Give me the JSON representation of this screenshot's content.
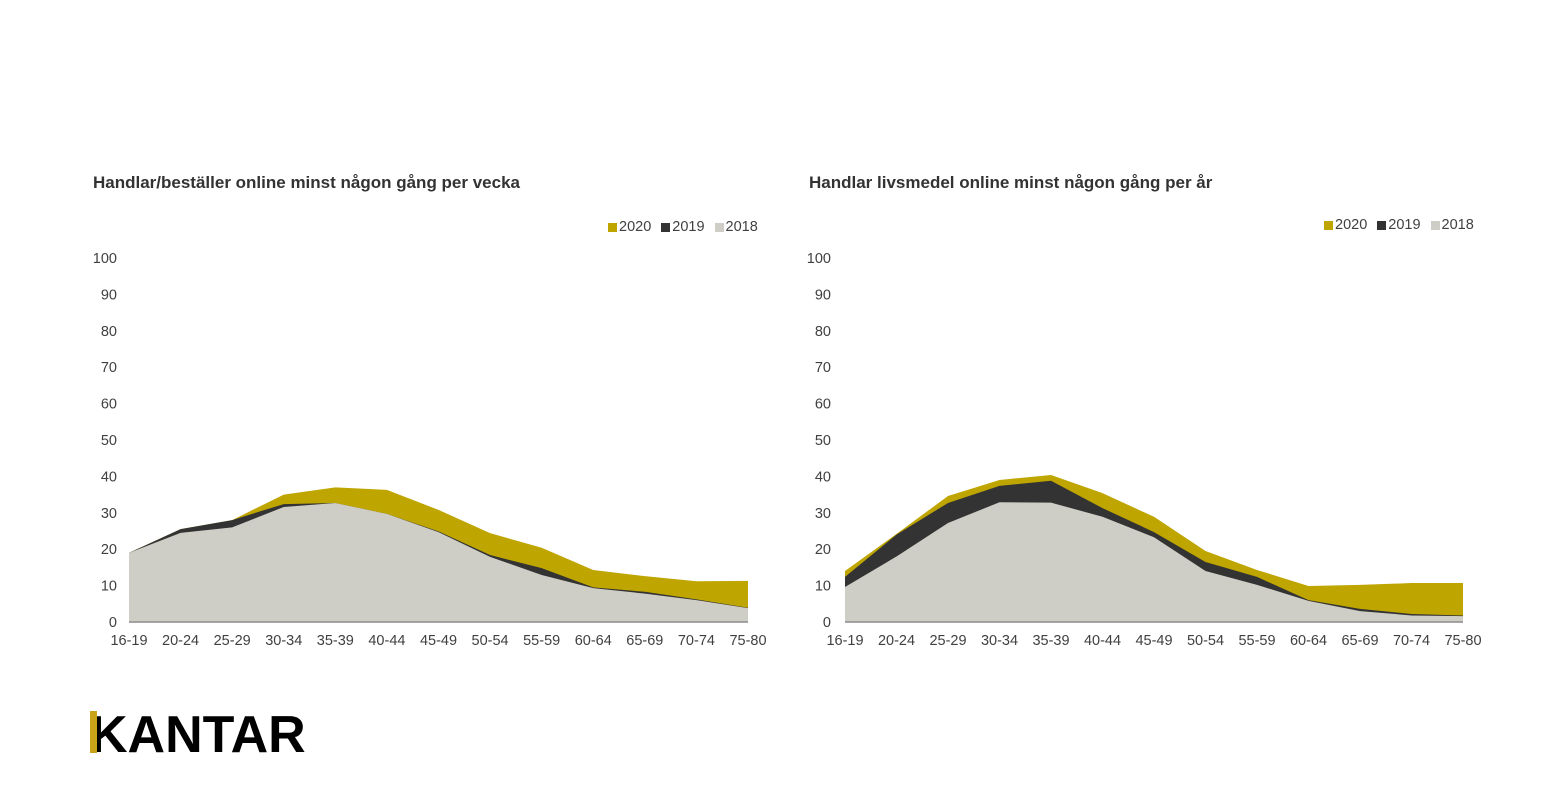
{
  "colors": {
    "y2020": "#BFA500",
    "y2019": "#333333",
    "y2018": "#CFCEC6",
    "baseline": "#8C8C8C",
    "logo_accent": "#C9A418"
  },
  "logo": {
    "text": "KANTAR"
  },
  "chart_data": [
    {
      "type": "area",
      "title": "Handlar/beställer online minst någon gång per vecka",
      "xlabel": "",
      "ylabel": "",
      "ylim": [
        0,
        100
      ],
      "yticks": [
        "0",
        "10",
        "20",
        "30",
        "40",
        "50",
        "60",
        "70",
        "80",
        "90",
        "100"
      ],
      "grid": false,
      "legend_position": "top-right",
      "legend": [
        "2020",
        "2019",
        "2018"
      ],
      "categories": [
        "16-19",
        "20-24",
        "25-29",
        "30-34",
        "35-39",
        "40-44",
        "45-49",
        "50-54",
        "55-59",
        "60-64",
        "65-69",
        "70-74",
        "75-80"
      ],
      "series": [
        {
          "name": "2020",
          "values": [
            19,
            25.5,
            28,
            35,
            37,
            36.3,
            30.8,
            24.4,
            20.4,
            14.3,
            12.6,
            11.2,
            11.3
          ]
        },
        {
          "name": "2019",
          "values": [
            19,
            25.5,
            28,
            32.4,
            32.7,
            29.7,
            24.9,
            18.4,
            14.8,
            9.5,
            8.3,
            6.2,
            3.9
          ]
        },
        {
          "name": "2018",
          "values": [
            19,
            24.5,
            26,
            31.6,
            32.7,
            29.7,
            24.7,
            17.9,
            12.9,
            9.3,
            7.8,
            6.0,
            3.8
          ]
        }
      ]
    },
    {
      "type": "area",
      "title": "Handlar livsmedel online minst någon gång per år",
      "xlabel": "",
      "ylabel": "",
      "ylim": [
        0,
        100
      ],
      "yticks": [
        "0",
        "10",
        "20",
        "30",
        "40",
        "50",
        "60",
        "70",
        "80",
        "90",
        "100"
      ],
      "grid": false,
      "legend_position": "top-right",
      "legend": [
        "2020",
        "2019",
        "2018"
      ],
      "categories": [
        "16-19",
        "20-24",
        "25-29",
        "30-34",
        "35-39",
        "40-44",
        "45-49",
        "50-54",
        "55-59",
        "60-64",
        "65-69",
        "70-74",
        "75-80"
      ],
      "series": [
        {
          "name": "2020",
          "values": [
            14,
            24.2,
            34.6,
            39,
            40.4,
            35.4,
            28.9,
            19.5,
            14.3,
            9.9,
            10.2,
            10.7,
            10.7
          ]
        },
        {
          "name": "2019",
          "values": [
            12.4,
            24,
            32.7,
            37.4,
            38.8,
            31.3,
            24.7,
            16.5,
            12.4,
            6.0,
            3.6,
            2.2,
            1.8
          ]
        },
        {
          "name": "2018",
          "values": [
            9.6,
            18,
            27.2,
            32.9,
            32.8,
            28.9,
            23.3,
            14.0,
            10.2,
            5.8,
            3.0,
            1.8,
            1.6
          ]
        }
      ]
    }
  ]
}
